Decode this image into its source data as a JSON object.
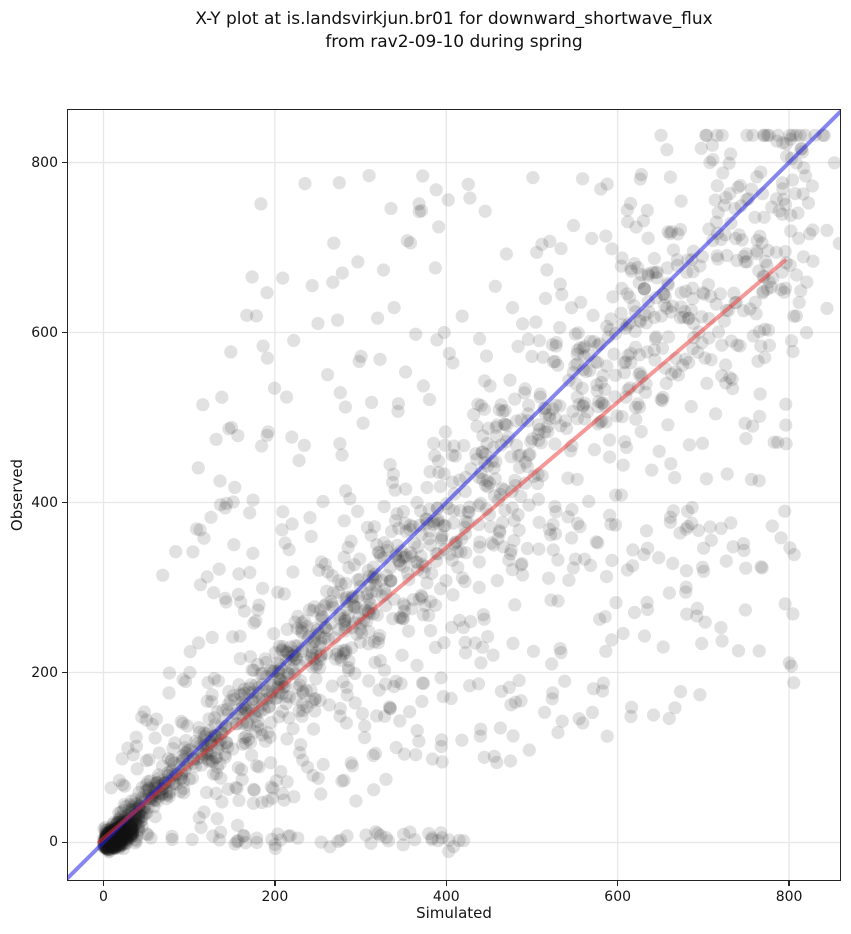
{
  "title": {
    "line1": "X-Y plot at is.landsvirkjun.br01 for downward_shortwave_flux",
    "line2": "from rav2-09-10 during spring"
  },
  "chart_data": {
    "type": "scatter",
    "title": "X-Y plot at is.landsvirkjun.br01 for downward_shortwave_flux from rav2-09-10 during spring",
    "xlabel": "Simulated",
    "ylabel": "Observed",
    "xlim": [
      -42.6,
      860.6
    ],
    "ylim": [
      -45.3,
      863.0
    ],
    "xticks": [
      0,
      200,
      400,
      600,
      800
    ],
    "yticks": [
      0,
      200,
      400,
      600,
      800
    ],
    "xtick_labels": [
      "0",
      "200",
      "400",
      "600",
      "800"
    ],
    "ytick_labels": [
      "0",
      "200",
      "400",
      "600",
      "800"
    ],
    "grid": true,
    "grid_color": "#e7e7e7",
    "frame_color": "#242424",
    "marker": {
      "radius_px": 6.6,
      "color": "rgba(25,25,25,0.13)"
    },
    "lines": [
      {
        "name": "identity-line",
        "role": "1:1 reference",
        "x1": -42.6,
        "y1": -42.6,
        "x2": 860.6,
        "y2": 860.6,
        "color": "rgba(35,35,230,0.55)",
        "width": 4
      },
      {
        "name": "regression-line",
        "role": "linear fit",
        "slope": 0.855,
        "intercept": 5,
        "x1": -5,
        "y1": 0.7,
        "x2": 795,
        "y2": 684.7,
        "color": "rgba(235,50,50,0.5)",
        "width": 4
      }
    ],
    "data_summary": {
      "n_points_approx": 2570,
      "value_range": [
        0,
        820
      ],
      "pattern": "dense near-zero night cluster, diagonal fan along y=x, broad under-prediction spread below the 1:1 line at mid-to-high simulated values, sparser over-prediction points above the line",
      "fit_line_approx": "Observed = 0.855 * Simulated + 5"
    },
    "scatter_generator": {
      "seed": 42,
      "clusters": [
        {
          "kind": "night",
          "n": 760,
          "t_scale": 13,
          "x_jit": 6,
          "y_slope": 0.6,
          "y_jit": 5,
          "y_min": -14
        },
        {
          "kind": "fan",
          "n": 1160,
          "max": 828,
          "exp": 1.25,
          "slope": 0.965,
          "spread": 0.11,
          "x_spread": 0.045,
          "jitter": 8,
          "y_min": -8,
          "y_max": 832
        },
        {
          "kind": "below",
          "n": 400,
          "xmin": 110,
          "xmax": 812,
          "rmin": 0.22,
          "rmax": 0.9,
          "jitter": 14
        },
        {
          "kind": "above",
          "n": 190,
          "ymin": 60,
          "ymax": 790,
          "rmin": 0.25,
          "rmax": 0.82,
          "jitter": 10
        },
        {
          "kind": "floor",
          "n": 60,
          "xmax": 430,
          "y_mean": 4,
          "y_sd": 5
        }
      ]
    }
  }
}
